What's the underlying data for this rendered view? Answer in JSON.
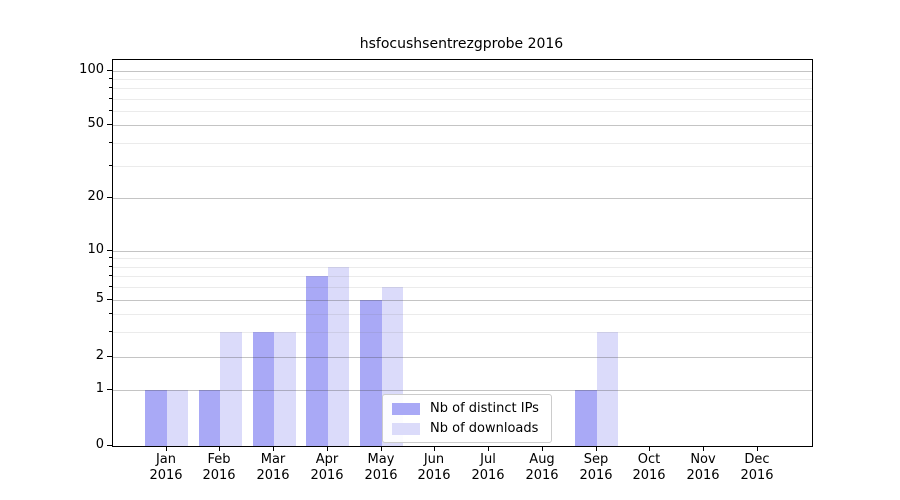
{
  "chart_data": {
    "type": "bar",
    "title": "hsfocushsentrezgprobe 2016",
    "categories": [
      "Jan 2016",
      "Feb 2016",
      "Mar 2016",
      "Apr 2016",
      "May 2016",
      "Jun 2016",
      "Jul 2016",
      "Aug 2016",
      "Sep 2016",
      "Oct 2016",
      "Nov 2016",
      "Dec 2016"
    ],
    "series": [
      {
        "name": "Nb of distinct IPs",
        "color": "#a9a9f6",
        "values": [
          1,
          1,
          3,
          7,
          5,
          0,
          0,
          0,
          1,
          0,
          0,
          0
        ]
      },
      {
        "name": "Nb of downloads",
        "color": "#dbdbfa",
        "values": [
          1,
          3,
          3,
          8,
          6,
          0,
          0,
          0,
          3,
          0,
          0,
          0
        ]
      }
    ],
    "xlabel": "",
    "ylabel": "",
    "ylim": [
      0,
      100
    ],
    "y_axis": {
      "scale": "symlog",
      "major_ticks": [
        0,
        1,
        2,
        5,
        10,
        20,
        50,
        100
      ],
      "minor_ticks": [
        3,
        4,
        6,
        7,
        8,
        9,
        30,
        40,
        60,
        70,
        80,
        90
      ]
    },
    "grid": {
      "horizontal": true,
      "vertical": false,
      "drawn_above_bars": true
    },
    "legend": {
      "position": "lower center",
      "entries": [
        "Nb of distinct IPs",
        "Nb of downloads"
      ]
    },
    "colors": {
      "spine": "#000000",
      "major_grid": "#c4c4c4",
      "minor_grid": "#ececec",
      "background": "#ffffff"
    }
  }
}
